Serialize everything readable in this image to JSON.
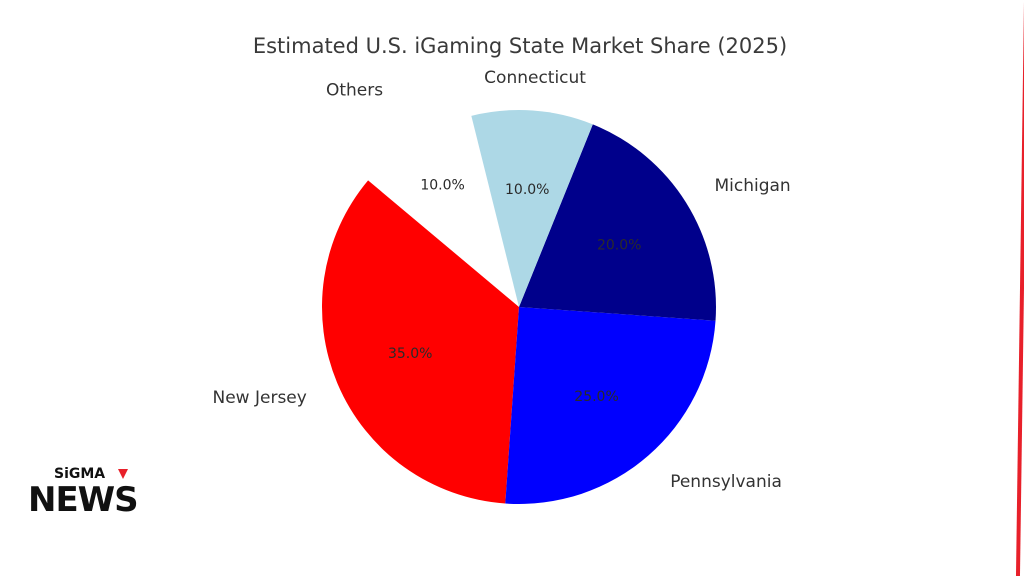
{
  "chart_data": {
    "type": "pie",
    "title": "Estimated U.S. iGaming State Market Share (2025)",
    "slices": [
      {
        "label": "New Jersey",
        "value": 35.0,
        "pct_label": "35.0%",
        "color": "#ff0000",
        "pct_color": "#2a2a2a"
      },
      {
        "label": "Pennsylvania",
        "value": 25.0,
        "pct_label": "25.0%",
        "color": "#0000ff",
        "pct_color": "#2a2a2a"
      },
      {
        "label": "Michigan",
        "value": 20.0,
        "pct_label": "20.0%",
        "color": "#00008b",
        "pct_color": "#2a2a2a"
      },
      {
        "label": "Connecticut",
        "value": 10.0,
        "pct_label": "10.0%",
        "color": "#add8e6",
        "pct_color": "#2a2a2a"
      },
      {
        "label": "Others",
        "value": 10.0,
        "pct_label": "10.0%",
        "color": "#ffffff",
        "pct_color": "#2a2a2a"
      }
    ],
    "start_angle_deg": 140,
    "direction": "counterclockwise",
    "legend": "none"
  },
  "branding": {
    "logo_top": "SiGMA",
    "logo_bottom": "NEWS",
    "accent_color": "#e8202a"
  }
}
